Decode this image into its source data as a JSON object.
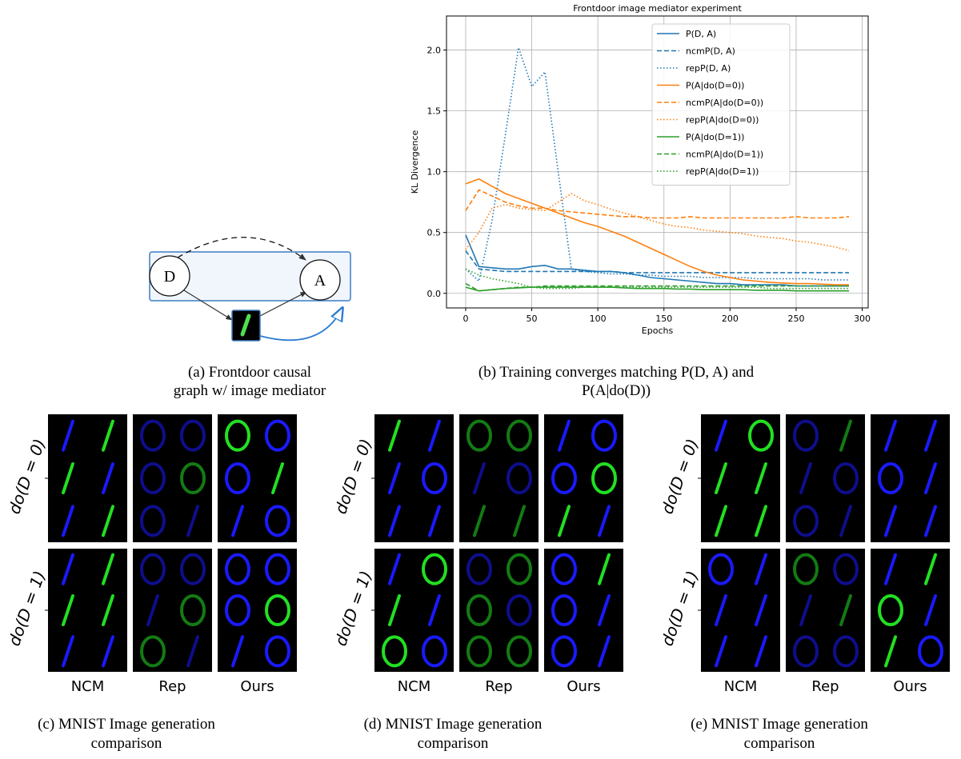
{
  "diagram": {
    "nodes": [
      {
        "label": "D"
      },
      {
        "label": "A"
      }
    ],
    "caption": [
      "(a) Frontdoor causal",
      "graph w/ image mediator"
    ]
  },
  "chart_data": {
    "type": "line",
    "title": "Frontdoor image mediator experiment",
    "xlabel": "Epochs",
    "ylabel": "KL Divergence",
    "x": [
      0,
      10,
      20,
      30,
      40,
      50,
      60,
      70,
      80,
      90,
      100,
      110,
      120,
      130,
      140,
      150,
      160,
      170,
      180,
      190,
      200,
      210,
      220,
      230,
      240,
      250,
      260,
      270,
      280,
      290
    ],
    "series": [
      {
        "name": "P(D, A)",
        "color": "#1f77b4",
        "style": "solid",
        "values": [
          0.48,
          0.22,
          0.21,
          0.2,
          0.2,
          0.22,
          0.23,
          0.2,
          0.2,
          0.19,
          0.18,
          0.18,
          0.17,
          0.15,
          0.13,
          0.12,
          0.11,
          0.1,
          0.09,
          0.08,
          0.08,
          0.07,
          0.07,
          0.07,
          0.07,
          0.06,
          0.06,
          0.06,
          0.06,
          0.06
        ]
      },
      {
        "name": "ncmP(D, A)",
        "color": "#1f77b4",
        "style": "dashed",
        "values": [
          0.35,
          0.2,
          0.19,
          0.18,
          0.18,
          0.18,
          0.18,
          0.18,
          0.18,
          0.18,
          0.18,
          0.18,
          0.17,
          0.17,
          0.17,
          0.17,
          0.17,
          0.17,
          0.17,
          0.17,
          0.17,
          0.17,
          0.17,
          0.17,
          0.17,
          0.17,
          0.17,
          0.17,
          0.17,
          0.17
        ]
      },
      {
        "name": "repP(D, A)",
        "color": "#1f77b4",
        "style": "dotted",
        "values": [
          0.2,
          0.1,
          0.6,
          1.3,
          2.02,
          1.7,
          1.82,
          1.0,
          0.2,
          0.18,
          0.17,
          0.16,
          0.16,
          0.15,
          0.15,
          0.14,
          0.14,
          0.14,
          0.13,
          0.13,
          0.13,
          0.13,
          0.12,
          0.12,
          0.12,
          0.12,
          0.12,
          0.11,
          0.11,
          0.11
        ]
      },
      {
        "name": "P(A|do(D=0))",
        "color": "#ff7f0e",
        "style": "solid",
        "values": [
          0.9,
          0.94,
          0.88,
          0.82,
          0.78,
          0.74,
          0.7,
          0.66,
          0.62,
          0.58,
          0.55,
          0.51,
          0.47,
          0.42,
          0.37,
          0.32,
          0.27,
          0.22,
          0.18,
          0.15,
          0.13,
          0.11,
          0.1,
          0.09,
          0.085,
          0.08,
          0.08,
          0.075,
          0.07,
          0.07
        ]
      },
      {
        "name": "ncmP(A|do(D=0))",
        "color": "#ff7f0e",
        "style": "dashed",
        "values": [
          0.68,
          0.85,
          0.8,
          0.75,
          0.72,
          0.7,
          0.7,
          0.68,
          0.67,
          0.66,
          0.65,
          0.64,
          0.63,
          0.63,
          0.62,
          0.62,
          0.62,
          0.63,
          0.62,
          0.62,
          0.62,
          0.62,
          0.62,
          0.62,
          0.62,
          0.63,
          0.62,
          0.62,
          0.62,
          0.63
        ]
      },
      {
        "name": "repP(A|do(D=0))",
        "color": "#ff7f0e",
        "style": "dotted",
        "values": [
          0.36,
          0.5,
          0.7,
          0.73,
          0.7,
          0.69,
          0.68,
          0.75,
          0.82,
          0.76,
          0.73,
          0.69,
          0.66,
          0.63,
          0.6,
          0.57,
          0.55,
          0.54,
          0.52,
          0.51,
          0.5,
          0.49,
          0.47,
          0.46,
          0.45,
          0.43,
          0.42,
          0.4,
          0.38,
          0.35
        ]
      },
      {
        "name": "P(A|do(D=1))",
        "color": "#2ca02c",
        "style": "solid",
        "values": [
          0.05,
          0.02,
          0.03,
          0.04,
          0.045,
          0.05,
          0.05,
          0.05,
          0.05,
          0.05,
          0.05,
          0.05,
          0.045,
          0.04,
          0.04,
          0.04,
          0.035,
          0.035,
          0.03,
          0.03,
          0.03,
          0.03,
          0.025,
          0.025,
          0.025,
          0.02,
          0.02,
          0.02,
          0.02,
          0.02
        ]
      },
      {
        "name": "ncmP(A|do(D=1))",
        "color": "#2ca02c",
        "style": "dashed",
        "values": [
          0.08,
          0.02,
          0.03,
          0.04,
          0.05,
          0.05,
          0.06,
          0.06,
          0.06,
          0.06,
          0.06,
          0.06,
          0.06,
          0.06,
          0.06,
          0.06,
          0.06,
          0.06,
          0.06,
          0.06,
          0.06,
          0.06,
          0.06,
          0.06,
          0.06,
          0.06,
          0.06,
          0.06,
          0.06,
          0.06
        ]
      },
      {
        "name": "repP(A|do(D=1))",
        "color": "#2ca02c",
        "style": "dotted",
        "values": [
          0.2,
          0.15,
          0.12,
          0.1,
          0.08,
          0.05,
          0.04,
          0.04,
          0.04,
          0.05,
          0.05,
          0.05,
          0.05,
          0.05,
          0.05,
          0.05,
          0.05,
          0.05,
          0.05,
          0.05,
          0.05,
          0.05,
          0.05,
          0.04,
          0.04,
          0.04,
          0.04,
          0.04,
          0.04,
          0.04
        ]
      }
    ],
    "xlim": [
      -14.5,
      304.5
    ],
    "xticks": [
      0,
      50,
      100,
      150,
      200,
      250,
      300
    ],
    "ylim": [
      -0.12,
      2.28
    ],
    "yticks": [
      {
        "value": 0,
        "label": "0.0"
      },
      0.5,
      {
        "value": 1,
        "label": "1.0"
      },
      1.5,
      {
        "value": 2,
        "label": "2.0"
      }
    ],
    "grid": true,
    "legend": "upper right",
    "caption": [
      "(b) Training converges matching P(D, A) and",
      "P(A|do(D))"
    ]
  },
  "panels": [
    {
      "columns": [
        "NCM",
        "Rep",
        "Ours"
      ],
      "rows": [
        "do(D = 0)",
        "do(D = 1)"
      ],
      "caption": [
        "(c) MNIST Image generation",
        "comparison"
      ]
    },
    {
      "columns": [
        "NCM",
        "Rep",
        "Ours"
      ],
      "rows": [
        "do(D = 0)",
        "do(D = 1)"
      ],
      "caption": [
        "(d) MNIST Image generation",
        "comparison"
      ]
    },
    {
      "columns": [
        "NCM",
        "Rep",
        "Ours"
      ],
      "rows": [
        "do(D = 0)",
        "do(D = 1)"
      ],
      "caption": [
        "(e) MNIST Image generation",
        "comparison"
      ]
    }
  ]
}
